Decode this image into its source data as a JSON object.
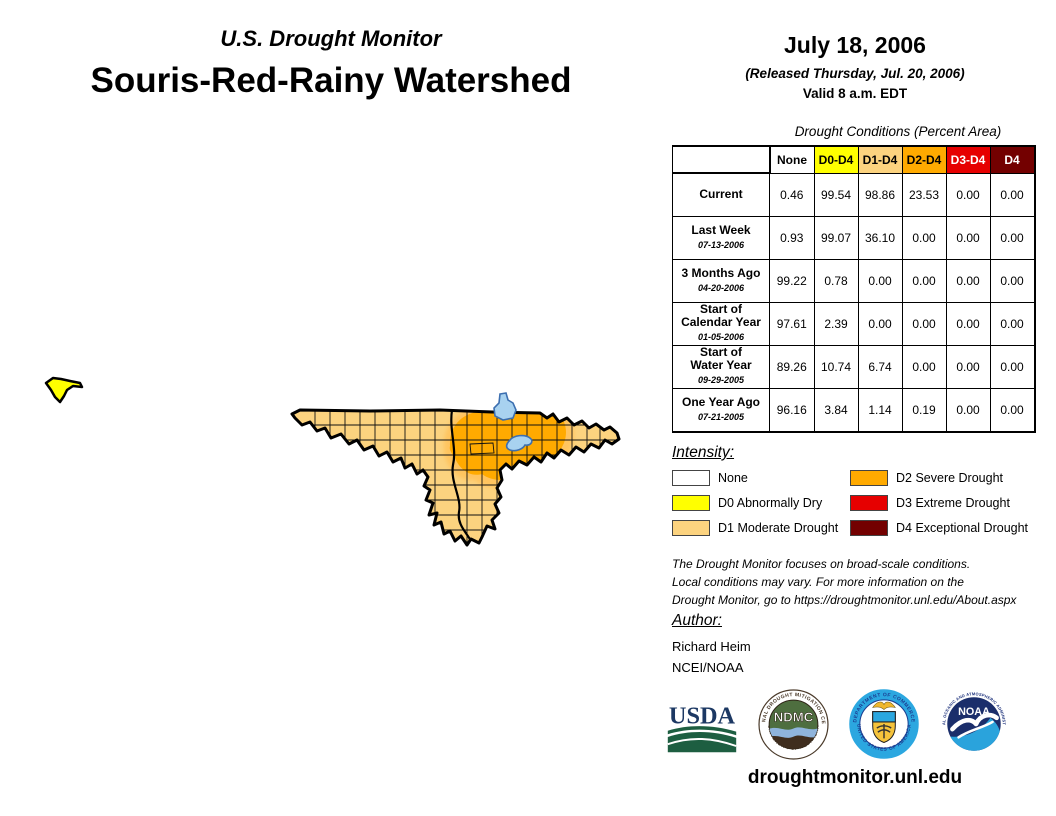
{
  "header": {
    "supertitle": "U.S. Drought Monitor",
    "title": "Souris-Red-Rainy Watershed",
    "date": "July 18, 2006",
    "released": "(Released Thursday, Jul. 20, 2006)",
    "valid": "Valid 8 a.m. EDT"
  },
  "drought_table": {
    "caption": "Drought Conditions (Percent Area)",
    "columns": [
      {
        "label": "None",
        "bg": "#FFFFFF",
        "fg": "#000000"
      },
      {
        "label": "D0-D4",
        "bg": "#FFFF00",
        "fg": "#000000"
      },
      {
        "label": "D1-D4",
        "bg": "#FCD37F",
        "fg": "#000000"
      },
      {
        "label": "D2-D4",
        "bg": "#FFAA00",
        "fg": "#000000"
      },
      {
        "label": "D3-D4",
        "bg": "#E60000",
        "fg": "#FFFFFF"
      },
      {
        "label": "D4",
        "bg": "#730000",
        "fg": "#FFFFFF"
      }
    ],
    "rows": [
      {
        "label_lines": [
          "Current"
        ],
        "date": "",
        "values": [
          "0.46",
          "99.54",
          "98.86",
          "23.53",
          "0.00",
          "0.00"
        ]
      },
      {
        "label_lines": [
          "Last Week"
        ],
        "date": "07-13-2006",
        "values": [
          "0.93",
          "99.07",
          "36.10",
          "0.00",
          "0.00",
          "0.00"
        ]
      },
      {
        "label_lines": [
          "3 Months Ago"
        ],
        "date": "04-20-2006",
        "values": [
          "99.22",
          "0.78",
          "0.00",
          "0.00",
          "0.00",
          "0.00"
        ]
      },
      {
        "label_lines": [
          "Start of",
          "Calendar Year"
        ],
        "date": "01-05-2006",
        "values": [
          "97.61",
          "2.39",
          "0.00",
          "0.00",
          "0.00",
          "0.00"
        ]
      },
      {
        "label_lines": [
          "Start of",
          "Water Year"
        ],
        "date": "09-29-2005",
        "values": [
          "89.26",
          "10.74",
          "6.74",
          "0.00",
          "0.00",
          "0.00"
        ]
      },
      {
        "label_lines": [
          "One Year Ago"
        ],
        "date": "07-21-2005",
        "values": [
          "96.16",
          "3.84",
          "1.14",
          "0.19",
          "0.00",
          "0.00"
        ]
      }
    ]
  },
  "chart_data": {
    "type": "table",
    "title": "Drought Conditions (Percent Area)",
    "columns": [
      "None",
      "D0-D4",
      "D1-D4",
      "D2-D4",
      "D3-D4",
      "D4"
    ],
    "rows": [
      {
        "label": "Current",
        "date": "",
        "values": [
          0.46,
          99.54,
          98.86,
          23.53,
          0.0,
          0.0
        ]
      },
      {
        "label": "Last Week",
        "date": "07-13-2006",
        "values": [
          0.93,
          99.07,
          36.1,
          0.0,
          0.0,
          0.0
        ]
      },
      {
        "label": "3 Months Ago",
        "date": "04-20-2006",
        "values": [
          99.22,
          0.78,
          0.0,
          0.0,
          0.0,
          0.0
        ]
      },
      {
        "label": "Start of Calendar Year",
        "date": "01-05-2006",
        "values": [
          97.61,
          2.39,
          0.0,
          0.0,
          0.0,
          0.0
        ]
      },
      {
        "label": "Start of Water Year",
        "date": "09-29-2005",
        "values": [
          89.26,
          10.74,
          6.74,
          0.0,
          0.0,
          0.0
        ]
      },
      {
        "label": "One Year Ago",
        "date": "07-21-2005",
        "values": [
          96.16,
          3.84,
          1.14,
          0.19,
          0.0,
          0.0
        ]
      }
    ]
  },
  "intensity_legend": {
    "heading": "Intensity:",
    "items": [
      {
        "label": "None",
        "color": "#FFFFFF"
      },
      {
        "label": "D0 Abnormally Dry",
        "color": "#FFFF00"
      },
      {
        "label": "D1 Moderate Drought",
        "color": "#FCD37F"
      },
      {
        "label": "D2 Severe Drought",
        "color": "#FFAA00"
      },
      {
        "label": "D3 Extreme Drought",
        "color": "#E60000"
      },
      {
        "label": "D4 Exceptional Drought",
        "color": "#730000"
      }
    ]
  },
  "map": {
    "colors": {
      "d0": "#FFFF00",
      "d1": "#FCD37F",
      "d2": "#FFAA00",
      "d2_fringe": "#FFC45E",
      "water_fill": "#A8D2F0",
      "water_stroke": "#3C6FB0",
      "boundary": "#000000"
    }
  },
  "disclaimer": {
    "lines": [
      "The Drought Monitor focuses on broad-scale conditions.",
      "Local conditions may vary. For more information on the",
      "Drought Monitor, go to https://droughtmonitor.unl.edu/About.aspx"
    ]
  },
  "author": {
    "heading": "Author:",
    "name": "Richard Heim",
    "org": "NCEI/NOAA"
  },
  "footer": {
    "url": "droughtmonitor.unl.edu",
    "logos": {
      "usda": {
        "label": "USDA"
      },
      "ndmc": {
        "label": "NDMC",
        "ring_top": "NATIONAL DROUGHT MITIGATION CENTER",
        "ring_bottom": "UNIVERSITY OF NEBRASKA"
      },
      "doc": {
        "ring_top": "DEPARTMENT OF COMMERCE",
        "ring_bottom": "UNITED STATES OF AMERICA"
      },
      "noaa": {
        "label": "NOAA",
        "ring_top": "NATIONAL OCEANIC AND ATMOSPHERIC ADMINISTRATION",
        "ring_bottom": "U.S. DEPARTMENT OF COMMERCE"
      }
    }
  }
}
